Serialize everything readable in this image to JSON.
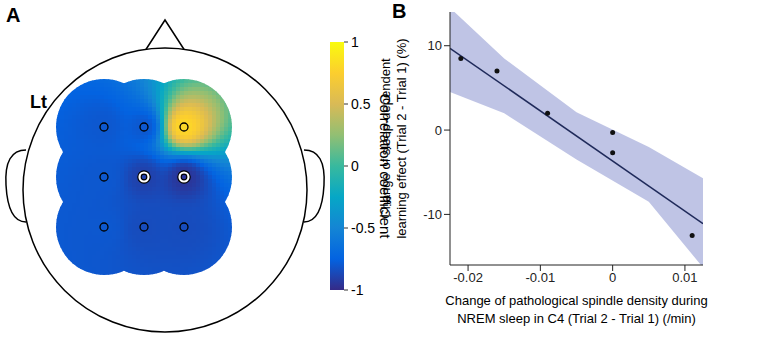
{
  "chart_data": [
    {
      "type": "heatmap",
      "panel": "A",
      "side_label": "Lt",
      "values": [
        [
          -0.8,
          -0.8,
          0.8
        ],
        [
          -0.8,
          -0.9,
          -0.95
        ],
        [
          -0.8,
          -0.85,
          -0.85
        ]
      ],
      "highlighted": [
        [
          false,
          false,
          false
        ],
        [
          false,
          true,
          true
        ],
        [
          false,
          false,
          false
        ]
      ],
      "colorbar": {
        "label": "Correlation coefficient",
        "range": [
          -1,
          1
        ],
        "ticks": [
          -1,
          -0.5,
          0,
          0.5,
          1
        ]
      }
    },
    {
      "type": "scatter",
      "panel": "B",
      "x": [
        -0.021,
        -0.016,
        -0.009,
        0,
        0,
        0.011
      ],
      "values": [
        8.5,
        7,
        2,
        -0.3,
        -2.7,
        -12.5
      ],
      "color": "#111111",
      "fit": {
        "x": [
          -0.0225,
          0.0125
        ],
        "y": [
          9.7,
          -11.1
        ],
        "color": "#1f2a5a"
      },
      "band": {
        "x": [
          -0.0225,
          -0.015,
          -0.005,
          0.005,
          0.0125
        ],
        "lower": [
          4.5,
          2,
          -3.5,
          -8.5,
          -16.3
        ],
        "upper": [
          14.5,
          8.5,
          2.1,
          -2,
          -5.7
        ],
        "color": "#aab0dc"
      },
      "xlim": [
        -0.0225,
        0.0125
      ],
      "ylim": [
        -16,
        14
      ],
      "xticks": [
        -0.02,
        -0.01,
        0,
        0.01
      ],
      "yticks": [
        -10,
        0,
        10
      ],
      "x_label": [
        "Change of pathological spindle density during",
        "NREM sleep in C4 (Trial 2 - Trial 1) (/min)"
      ],
      "y_label": [
        "Change of sleep-dependent",
        "learning effect (Trial 2 - Trial 1) (%)"
      ]
    }
  ]
}
